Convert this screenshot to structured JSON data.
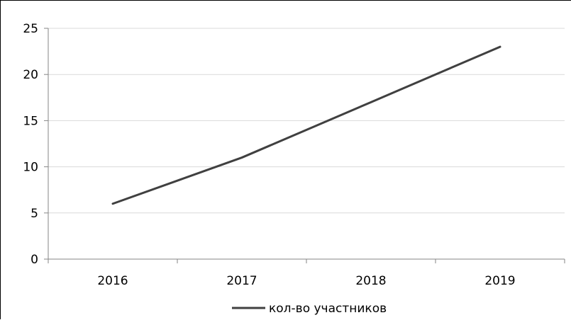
{
  "chart_data": {
    "type": "line",
    "categories": [
      "2016",
      "2017",
      "2018",
      "2019"
    ],
    "series": [
      {
        "name": "кол-во участников",
        "values": [
          6,
          11,
          17,
          23
        ],
        "color": "#404040"
      }
    ],
    "ylim": [
      0,
      25
    ],
    "yticks": [
      "0",
      "5",
      "10",
      "15",
      "20",
      "25"
    ],
    "grid": true,
    "legend": "bottom",
    "gridColor": "#d9d9d9",
    "axisColor": "#868686"
  }
}
